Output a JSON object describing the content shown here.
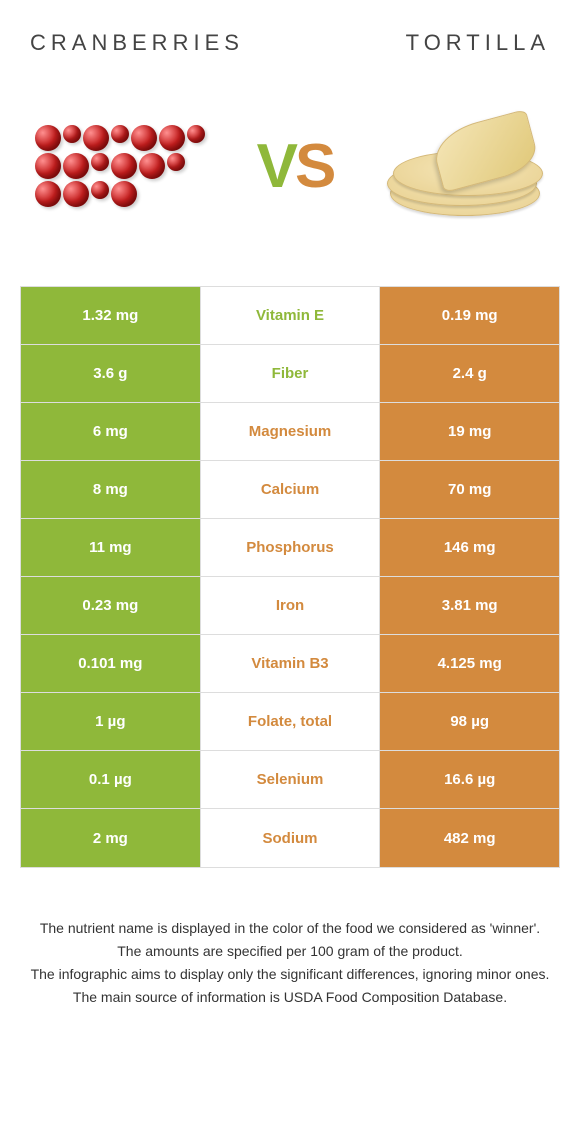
{
  "colors": {
    "food1": "#8fb83a",
    "food2": "#d38a3e",
    "border": "#dddddd",
    "bg": "#ffffff"
  },
  "header": {
    "food1": "Cranberries",
    "food2": "Tortilla",
    "vs_v": "V",
    "vs_s": "S"
  },
  "rows": [
    {
      "left": "1.32 mg",
      "label": "Vitamin E",
      "right": "0.19 mg",
      "winner": "food1"
    },
    {
      "left": "3.6 g",
      "label": "Fiber",
      "right": "2.4 g",
      "winner": "food1"
    },
    {
      "left": "6 mg",
      "label": "Magnesium",
      "right": "19 mg",
      "winner": "food2"
    },
    {
      "left": "8 mg",
      "label": "Calcium",
      "right": "70 mg",
      "winner": "food2"
    },
    {
      "left": "11 mg",
      "label": "Phosphorus",
      "right": "146 mg",
      "winner": "food2"
    },
    {
      "left": "0.23 mg",
      "label": "Iron",
      "right": "3.81 mg",
      "winner": "food2"
    },
    {
      "left": "0.101 mg",
      "label": "Vitamin B3",
      "right": "4.125 mg",
      "winner": "food2"
    },
    {
      "left": "1 µg",
      "label": "Folate, total",
      "right": "98 µg",
      "winner": "food2"
    },
    {
      "left": "0.1 µg",
      "label": "Selenium",
      "right": "16.6 µg",
      "winner": "food2"
    },
    {
      "left": "2 mg",
      "label": "Sodium",
      "right": "482 mg",
      "winner": "food2"
    }
  ],
  "notes": {
    "line1": "The nutrient name is displayed in the color of the food we considered as 'winner'.",
    "line2": "The amounts are specified per 100 gram of the product.",
    "line3": "The infographic aims to display only the significant differences, ignoring minor ones.",
    "line4": "The main source of information is USDA Food Composition Database."
  }
}
